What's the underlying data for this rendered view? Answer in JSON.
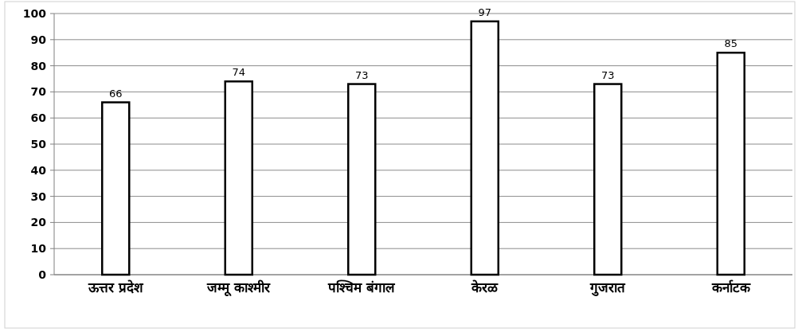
{
  "chart_data": {
    "type": "bar",
    "categories": [
      "ऊत्तर प्रदेश",
      "जम्मू काश्मीर",
      "पश्चिम बंगाल",
      "केरळ",
      "गुजरात",
      "कर्नाटक"
    ],
    "values": [
      66,
      74,
      73,
      97,
      73,
      85
    ],
    "color": "#ffffff",
    "ylim": [
      0,
      100
    ],
    "yticks": [
      0,
      10,
      20,
      30,
      40,
      50,
      60,
      70,
      80,
      90,
      100
    ],
    "grid": "y",
    "data_labels": true
  }
}
